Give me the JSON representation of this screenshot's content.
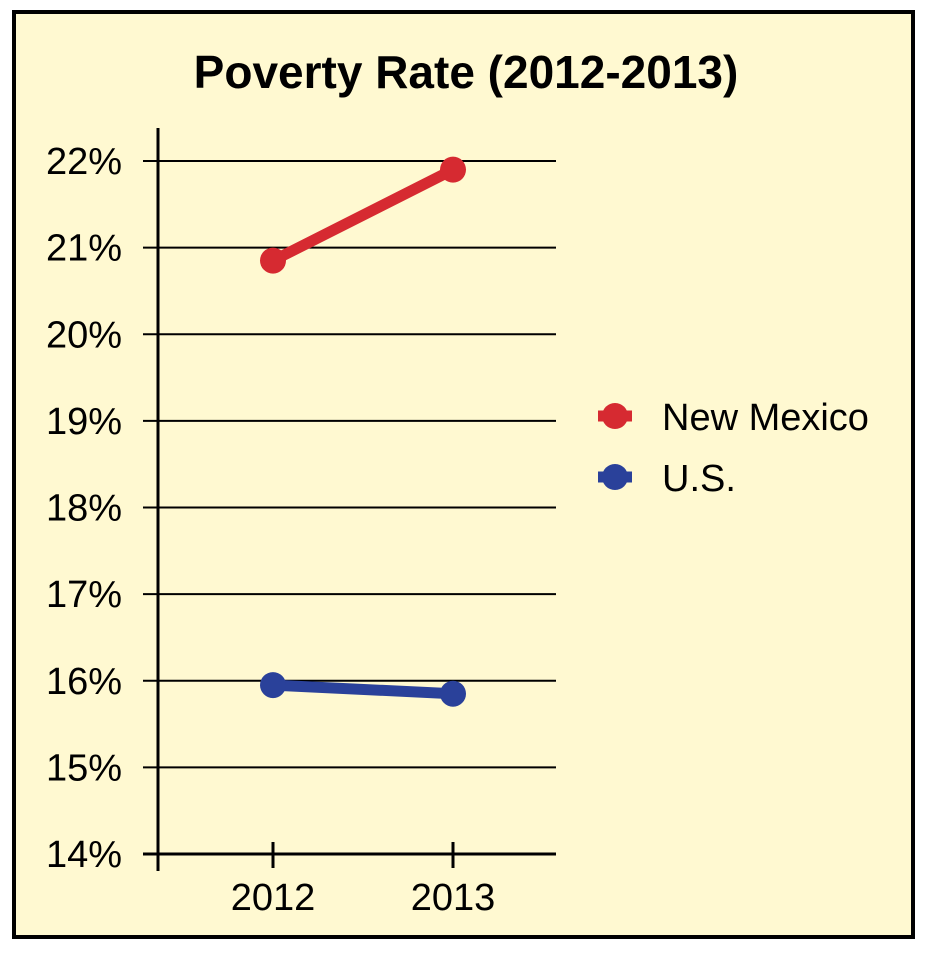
{
  "chart_data": {
    "type": "line",
    "title": "Poverty Rate (2012-2013)",
    "xlabel": "",
    "ylabel": "",
    "categories": [
      "2012",
      "2013"
    ],
    "yticks": [
      "22%",
      "21%",
      "20%",
      "19%",
      "18%",
      "17%",
      "16%",
      "15%",
      "14%"
    ],
    "ylim": [
      14,
      22
    ],
    "grid": true,
    "legend_position": "right",
    "series": [
      {
        "name": "New Mexico",
        "values": [
          20.85,
          21.9
        ],
        "color": "#d62a31"
      },
      {
        "name": "U.S.",
        "values": [
          15.95,
          15.85
        ],
        "color": "#2a419a"
      }
    ]
  },
  "colors": {
    "background": "#fff9d1",
    "border": "#000000",
    "gridline": "#000000"
  }
}
